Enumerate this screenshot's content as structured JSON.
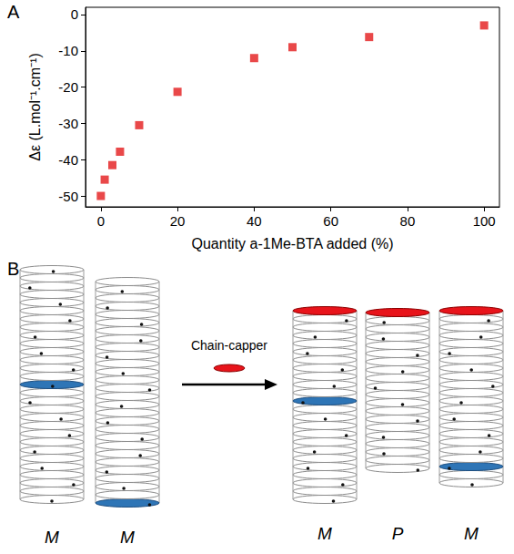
{
  "chart_data": {
    "type": "scatter",
    "panel_label": "A",
    "xlabel": "Quantity a-1Me-BTA added (%)",
    "ylabel": "Δε (L.mol⁻¹.cm⁻¹)",
    "x": [
      0,
      1,
      3,
      5,
      10,
      20,
      40,
      50,
      70,
      100
    ],
    "values": [
      -50,
      -45.5,
      -41.5,
      -37.8,
      -30.5,
      -21.3,
      -12,
      -9,
      -6.2,
      -3
    ],
    "color": "#e31a1c",
    "marker": "square",
    "xlim": [
      -4,
      104
    ],
    "xticks": [
      0,
      20,
      40,
      60,
      80,
      100
    ],
    "ylim": [
      -53,
      2
    ],
    "yticks": [
      -50,
      -40,
      -30,
      -20,
      -10,
      0
    ],
    "grid": false
  },
  "diagram": {
    "panel_label": "B",
    "arrow_label": "Chain-capper",
    "stacks_before": [
      {
        "label": "M"
      },
      {
        "label": "M"
      }
    ],
    "stacks_after": [
      {
        "label": "M"
      },
      {
        "label": "P"
      },
      {
        "label": "M"
      }
    ]
  }
}
